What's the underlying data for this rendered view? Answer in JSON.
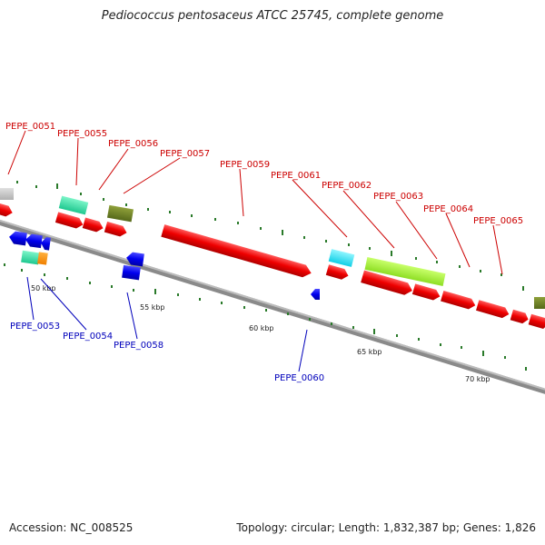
{
  "title": "Pediococcus pentosaceus ATCC 25745, complete genome",
  "footer": {
    "accession": "Accession: NC_008525",
    "summary": "Topology: circular; Length: 1,832,387 bp; Genes: 1,826"
  },
  "colors": {
    "forward_label": "#cc0000",
    "reverse_label": "#0000bb",
    "backbone": "#8a8a8a",
    "tick": "#2a7a2a"
  },
  "scale_labels": [
    "50 kbp",
    "55 kbp",
    "60 kbp",
    "65 kbp",
    "70 kbp"
  ],
  "upper_labels": [
    "PEPE_0051",
    "PEPE_0055",
    "PEPE_0056",
    "PEPE_0057",
    "PEPE_0059",
    "PEPE_0061",
    "PEPE_0062",
    "PEPE_0063",
    "PEPE_0064",
    "PEPE_0065"
  ],
  "lower_labels": [
    "PEPE_0053",
    "PEPE_0054",
    "PEPE_0058",
    "PEPE_0060"
  ]
}
